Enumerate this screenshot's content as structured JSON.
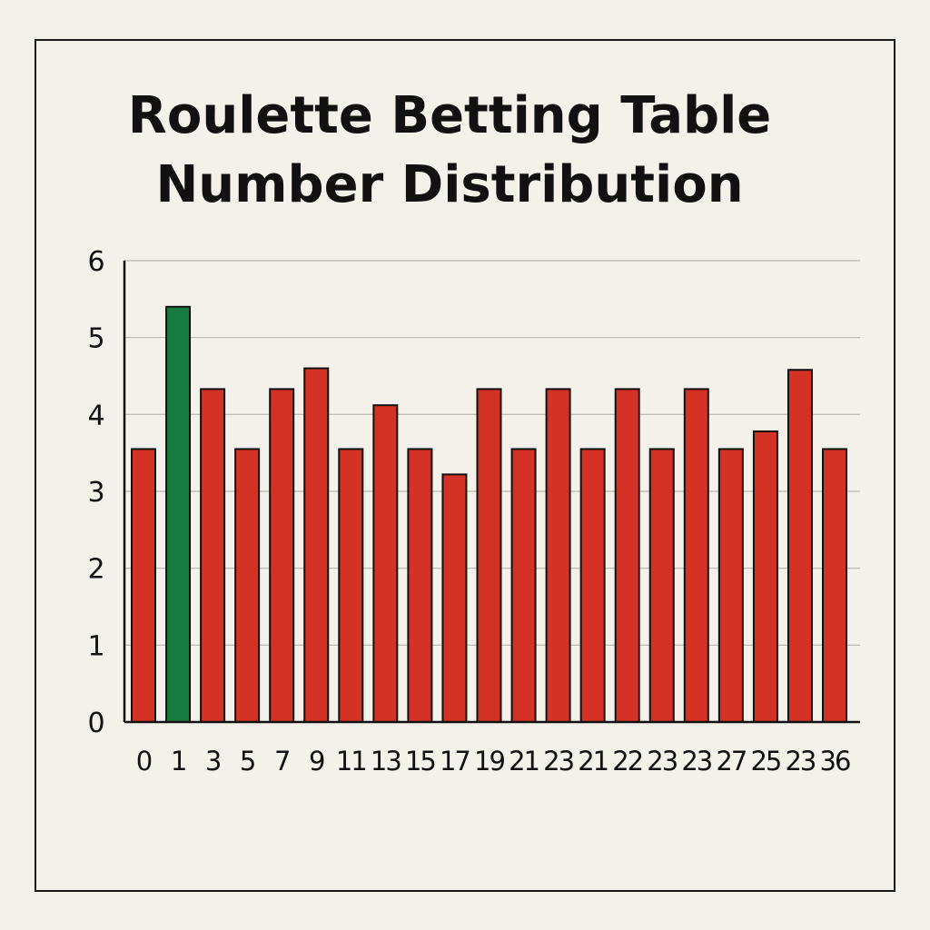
{
  "chart_data": {
    "type": "bar",
    "title_lines": [
      "Roulette Betting Table",
      "Number Distribution"
    ],
    "categories": [
      "0",
      "1",
      "3",
      "5",
      "7",
      "9",
      "11",
      "13",
      "15",
      "17",
      "19",
      "21",
      "23",
      "21",
      "22",
      "23",
      "23",
      "27",
      "25",
      "23",
      "36"
    ],
    "values": [
      3.55,
      5.4,
      4.33,
      3.55,
      4.33,
      4.6,
      3.55,
      4.12,
      3.55,
      3.22,
      4.33,
      3.55,
      4.33,
      3.55,
      4.33,
      3.55,
      4.33,
      3.55,
      3.78,
      4.58,
      3.55
    ],
    "bar_colors": [
      "#d33224",
      "#177a3e",
      "#d33224",
      "#d33224",
      "#d33224",
      "#d33224",
      "#d33224",
      "#d33224",
      "#d33224",
      "#d33224",
      "#d33224",
      "#d33224",
      "#d33224",
      "#d33224",
      "#d33224",
      "#d33224",
      "#d33224",
      "#d33224",
      "#d33224",
      "#d33224",
      "#d33224"
    ],
    "yticks": [
      "0",
      "1",
      "2",
      "3",
      "4",
      "5",
      "6"
    ],
    "ylim": [
      0,
      6
    ],
    "xlabel": "",
    "ylabel": "",
    "grid": true,
    "legend": "none"
  }
}
